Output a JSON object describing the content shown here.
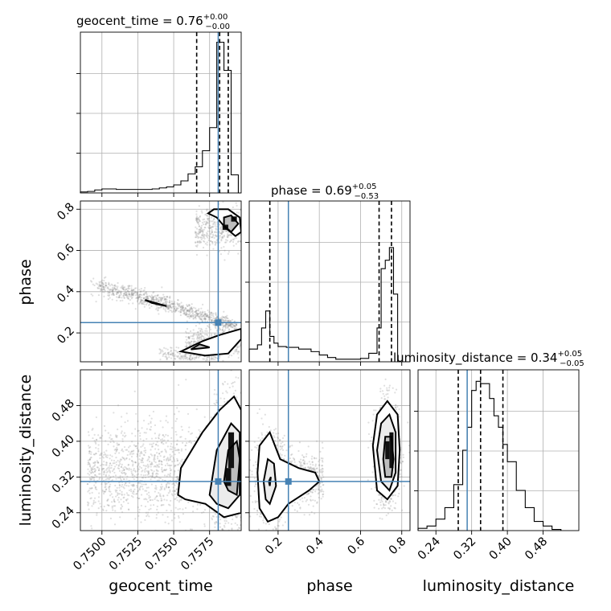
{
  "chart_data": {
    "type": "corner",
    "parameters": [
      "geocent_time",
      "phase",
      "luminosity_distance"
    ],
    "truths": {
      "geocent_time": 0.7581,
      "phase": 0.25,
      "luminosity_distance": 0.31
    },
    "titles": [
      {
        "param": "geocent_time",
        "text": "geocent_time = 0.76",
        "plus": "+0.00",
        "minus": "−0.00"
      },
      {
        "param": "phase",
        "text": "phase = 0.69",
        "plus": "+0.05",
        "minus": "−0.53"
      },
      {
        "param": "luminosity_distance",
        "text": "luminosity_distance = 0.34",
        "plus": "+0.05",
        "minus": "−0.05"
      }
    ],
    "axis_labels": {
      "geocent_time": "geocent_time",
      "phase": "phase",
      "luminosity_distance": "luminosity_distance"
    },
    "ranges": {
      "geocent_time": [
        0.7485,
        0.7597
      ],
      "phase": [
        0.06,
        0.84
      ],
      "luminosity_distance": [
        0.2,
        0.56
      ]
    },
    "ticks": {
      "geocent_time": [
        "0.7500",
        "0.7525",
        "0.7550",
        "0.7575"
      ],
      "phase_x": [
        "0.2",
        "0.4",
        "0.6",
        "0.8"
      ],
      "phase_y": [
        "0.2",
        "0.4",
        "0.6",
        "0.8"
      ],
      "luminosity_distance": [
        "0.24",
        "0.32",
        "0.40",
        "0.48"
      ]
    },
    "marginals": {
      "geocent_time": {
        "edges": [
          0.7485,
          0.749,
          0.7495,
          0.75,
          0.7505,
          0.751,
          0.7515,
          0.752,
          0.7525,
          0.753,
          0.7535,
          0.754,
          0.7545,
          0.755,
          0.7555,
          0.756,
          0.7565,
          0.757,
          0.7575,
          0.758,
          0.7585,
          0.759,
          0.7595,
          0.7597
        ],
        "counts": [
          1,
          1.5,
          3,
          4,
          4,
          3.5,
          3.5,
          3.5,
          3.5,
          3.5,
          4,
          5,
          6,
          8,
          12,
          19,
          26,
          42,
          65,
          150,
          122,
          18,
          0
        ],
        "ymax": 160,
        "quantiles": [
          0.7566,
          0.7582,
          0.7588
        ]
      },
      "phase": {
        "edges": [
          0.06,
          0.1,
          0.12,
          0.14,
          0.16,
          0.18,
          0.2,
          0.24,
          0.3,
          0.36,
          0.4,
          0.44,
          0.48,
          0.52,
          0.56,
          0.6,
          0.64,
          0.68,
          0.7,
          0.72,
          0.74,
          0.76,
          0.78,
          0.8,
          0.84
        ],
        "counts": [
          15,
          20,
          40,
          60,
          30,
          22,
          18,
          17,
          15,
          12,
          8,
          5,
          3,
          3,
          3,
          4,
          10,
          40,
          110,
          120,
          135,
          80,
          0,
          0
        ],
        "ymax": 190,
        "quantiles": [
          0.16,
          0.69,
          0.75
        ]
      },
      "luminosity_distance": {
        "edges": [
          0.2,
          0.22,
          0.24,
          0.26,
          0.28,
          0.3,
          0.31,
          0.32,
          0.33,
          0.34,
          0.35,
          0.36,
          0.37,
          0.38,
          0.39,
          0.4,
          0.42,
          0.44,
          0.46,
          0.48,
          0.5,
          0.52
        ],
        "counts": [
          2,
          4,
          10,
          20,
          40,
          70,
          90,
          122,
          130,
          128,
          128,
          115,
          100,
          90,
          75,
          60,
          35,
          20,
          8,
          4,
          1
        ],
        "ymax": 140,
        "quantiles": [
          0.29,
          0.34,
          0.39
        ]
      }
    },
    "joint": {
      "geocent_time__phase": {
        "contour_regions": [
          {
            "level": "outer",
            "polys": [
              [
                [
                  0.7574,
                  0.78
                ],
                [
                  0.758,
                  0.76
                ],
                [
                  0.7586,
                  0.71
                ],
                [
                  0.7593,
                  0.67
                ],
                [
                  0.7597,
                  0.69
                ],
                [
                  0.7596,
                  0.76
                ],
                [
                  0.7588,
                  0.8
                ],
                [
                  0.7578,
                  0.8
                ]
              ],
              [
                [
                  0.7555,
                  0.11
                ],
                [
                  0.757,
                  0.16
                ],
                [
                  0.7582,
                  0.19
                ],
                [
                  0.7597,
                  0.22
                ],
                [
                  0.7597,
                  0.17
                ],
                [
                  0.7588,
                  0.1
                ],
                [
                  0.7572,
                  0.09
                ]
              ],
              [
                [
                  0.753,
                  0.36
                ],
                [
                  0.7545,
                  0.33
                ],
                [
                  0.7535,
                  0.345
                ]
              ]
            ]
          },
          {
            "level": "inner",
            "polys": [
              [
                [
                  0.7585,
                  0.72
                ],
                [
                  0.759,
                  0.69
                ],
                [
                  0.7595,
                  0.73
                ],
                [
                  0.759,
                  0.77
                ],
                [
                  0.7585,
                  0.76
                ]
              ],
              [
                [
                  0.7562,
                  0.12
                ],
                [
                  0.7575,
                  0.13
                ],
                [
                  0.7568,
                  0.145
                ]
              ]
            ]
          }
        ],
        "dense_cells": [
          {
            "x": 0.759,
            "y": 0.74,
            "w": 0.0004,
            "h": 0.025
          },
          {
            "x": 0.7584,
            "y": 0.7,
            "w": 0.0004,
            "h": 0.025
          }
        ]
      },
      "geocent_time__luminosity_distance": {
        "contour_regions": [
          {
            "level": "outer",
            "polys": [
              [
                [
                  0.7553,
                  0.28
                ],
                [
                  0.7555,
                  0.34
                ],
                [
                  0.757,
                  0.42
                ],
                [
                  0.7582,
                  0.47
                ],
                [
                  0.7592,
                  0.5
                ],
                [
                  0.7597,
                  0.47
                ],
                [
                  0.7597,
                  0.24
                ],
                [
                  0.7585,
                  0.23
                ],
                [
                  0.7572,
                  0.26
                ],
                [
                  0.7558,
                  0.27
                ]
              ]
            ]
          },
          {
            "level": "middle",
            "polys": [
              [
                [
                  0.7575,
                  0.28
                ],
                [
                  0.758,
                  0.38
                ],
                [
                  0.759,
                  0.44
                ],
                [
                  0.7596,
                  0.42
                ],
                [
                  0.7596,
                  0.28
                ],
                [
                  0.7588,
                  0.25
                ],
                [
                  0.758,
                  0.26
                ]
              ]
            ]
          },
          {
            "level": "inner",
            "polys": [
              [
                [
                  0.7585,
                  0.31
                ],
                [
                  0.7588,
                  0.38
                ],
                [
                  0.7594,
                  0.4
                ],
                [
                  0.7596,
                  0.36
                ],
                [
                  0.7594,
                  0.28
                ],
                [
                  0.7588,
                  0.29
                ]
              ]
            ]
          }
        ],
        "dense_cells": [
          {
            "x": 0.7588,
            "y": 0.34,
            "w": 0.0004,
            "h": 0.04
          },
          {
            "x": 0.7586,
            "y": 0.3,
            "w": 0.0004,
            "h": 0.04
          },
          {
            "x": 0.7588,
            "y": 0.38,
            "w": 0.0004,
            "h": 0.04
          }
        ]
      },
      "phase__luminosity_distance": {
        "contour_regions": [
          {
            "level": "outer",
            "polys": [
              [
                [
                  0.1,
                  0.33
                ],
                [
                  0.11,
                  0.39
                ],
                [
                  0.16,
                  0.42
                ],
                [
                  0.21,
                  0.36
                ],
                [
                  0.3,
                  0.34
                ],
                [
                  0.38,
                  0.33
                ],
                [
                  0.4,
                  0.31
                ],
                [
                  0.35,
                  0.29
                ],
                [
                  0.25,
                  0.26
                ],
                [
                  0.2,
                  0.23
                ],
                [
                  0.15,
                  0.22
                ],
                [
                  0.11,
                  0.25
                ]
              ],
              [
                [
                  0.66,
                  0.39
                ],
                [
                  0.68,
                  0.46
                ],
                [
                  0.73,
                  0.49
                ],
                [
                  0.78,
                  0.46
                ],
                [
                  0.79,
                  0.38
                ],
                [
                  0.78,
                  0.3
                ],
                [
                  0.73,
                  0.27
                ],
                [
                  0.68,
                  0.29
                ]
              ]
            ]
          },
          {
            "level": "middle",
            "polys": [
              [
                [
                  0.13,
                  0.31
                ],
                [
                  0.15,
                  0.36
                ],
                [
                  0.18,
                  0.35
                ],
                [
                  0.19,
                  0.3
                ],
                [
                  0.16,
                  0.26
                ],
                [
                  0.14,
                  0.27
                ]
              ],
              [
                [
                  0.68,
                  0.38
                ],
                [
                  0.7,
                  0.44
                ],
                [
                  0.74,
                  0.46
                ],
                [
                  0.77,
                  0.42
                ],
                [
                  0.77,
                  0.33
                ],
                [
                  0.74,
                  0.29
                ],
                [
                  0.7,
                  0.31
                ]
              ]
            ]
          },
          {
            "level": "inner",
            "polys": [
              [
                [
                  0.155,
                  0.31
                ],
                [
                  0.165,
                  0.32
                ],
                [
                  0.16,
                  0.3
                ]
              ],
              [
                [
                  0.71,
                  0.36
                ],
                [
                  0.72,
                  0.41
                ],
                [
                  0.75,
                  0.41
                ],
                [
                  0.76,
                  0.36
                ],
                [
                  0.75,
                  0.32
                ],
                [
                  0.72,
                  0.32
                ]
              ]
            ]
          }
        ],
        "dense_cells": [
          {
            "x": 0.74,
            "y": 0.34,
            "w": 0.02,
            "h": 0.04
          },
          {
            "x": 0.72,
            "y": 0.36,
            "w": 0.02,
            "h": 0.04
          },
          {
            "x": 0.74,
            "y": 0.38,
            "w": 0.02,
            "h": 0.04
          }
        ]
      }
    }
  }
}
